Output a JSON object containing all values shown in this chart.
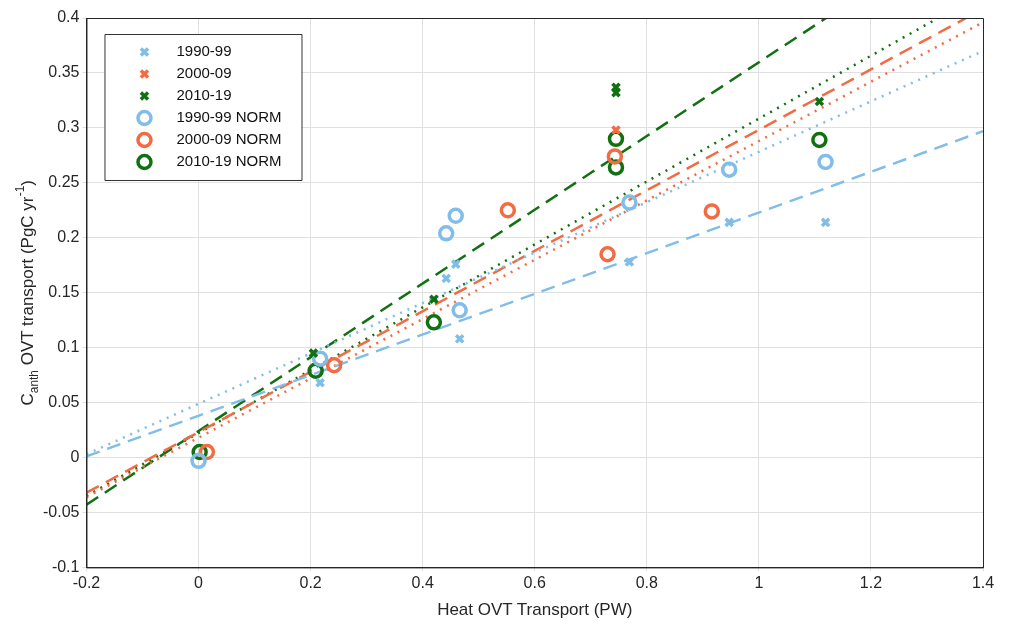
{
  "chart_data": {
    "type": "scatter",
    "xlabel": "Heat OVT Transport (PW)",
    "ylabel": "C$_{anth}$ OVT transport (PgC yr$^{-1}$)",
    "xlim": [
      -0.2,
      1.4
    ],
    "xticks": [
      -0.2,
      0,
      0.2,
      0.4,
      0.6,
      0.8,
      1,
      1.2,
      1.4
    ],
    "ylim": [
      -0.1,
      0.4
    ],
    "yticks": [
      -0.1,
      -0.05,
      0,
      0.05,
      0.1,
      0.15,
      0.2,
      0.25,
      0.3,
      0.35,
      0.4
    ],
    "grid": true,
    "legend": "top left",
    "series": [
      {
        "name": "1990-99",
        "color": "#80bde8",
        "marker": "cross",
        "x": [
          0.217,
          0.442,
          0.459,
          0.466,
          0.769,
          0.947,
          1.119
        ],
        "values": [
          0.068,
          0.163,
          0.176,
          0.108,
          0.178,
          0.214,
          0.214
        ]
      },
      {
        "name": "2000-09",
        "color": "#f26b43",
        "marker": "cross",
        "x": [
          0.745
        ],
        "values": [
          0.298
        ]
      },
      {
        "name": "2010-19",
        "color": "#117011",
        "marker": "cross",
        "x": [
          0.205,
          0.42,
          0.745,
          0.745,
          1.108
        ],
        "values": [
          0.095,
          0.144,
          0.337,
          0.332,
          0.324
        ]
      },
      {
        "name": "1990-99 NORM",
        "color": "#80bde8",
        "marker": "circle",
        "x": [
          0,
          0.217,
          0.442,
          0.459,
          0.466,
          0.769,
          0.947,
          1.119
        ],
        "values": [
          -0.003,
          0.09,
          0.204,
          0.22,
          0.134,
          0.232,
          0.262,
          0.269
        ]
      },
      {
        "name": "2000-09 NORM",
        "color": "#f26b43",
        "marker": "circle",
        "x": [
          0.015,
          0.242,
          0.552,
          0.73,
          0.743,
          0.916
        ],
        "values": [
          0.005,
          0.084,
          0.225,
          0.185,
          0.274,
          0.224
        ]
      },
      {
        "name": "2010-19 NORM",
        "color": "#117011",
        "marker": "circle",
        "x": [
          0.002,
          0.209,
          0.42,
          0.745,
          0.745,
          1.108
        ],
        "values": [
          0.005,
          0.079,
          0.123,
          0.29,
          0.264,
          0.289
        ]
      },
      {
        "type": "line",
        "color": "#80bde8",
        "line_style": "dashed",
        "marker": "none",
        "x": [
          -0.2,
          1.4
        ],
        "values": [
          0.001,
          0.297
        ]
      },
      {
        "type": "line",
        "color": "#80bde8",
        "line_style": "dotted",
        "marker": "none",
        "x": [
          -0.2,
          1.4
        ],
        "values": [
          0.003,
          0.37
        ]
      },
      {
        "type": "line",
        "color": "#f26b43",
        "line_style": "dashed",
        "marker": "none",
        "x": [
          -0.2,
          1.37
        ],
        "values": [
          -0.032,
          0.4
        ]
      },
      {
        "type": "line",
        "color": "#f26b43",
        "line_style": "dotted",
        "marker": "none",
        "x": [
          -0.2,
          1.4
        ],
        "values": [
          -0.036,
          0.396
        ]
      },
      {
        "type": "line",
        "color": "#117011",
        "line_style": "dashed",
        "marker": "none",
        "x": [
          -0.2,
          1.12
        ],
        "values": [
          -0.043,
          0.4
        ]
      },
      {
        "type": "line",
        "color": "#117011",
        "line_style": "dotted",
        "marker": "none",
        "x": [
          -0.2,
          1.32
        ],
        "values": [
          -0.035,
          0.4
        ]
      }
    ]
  }
}
